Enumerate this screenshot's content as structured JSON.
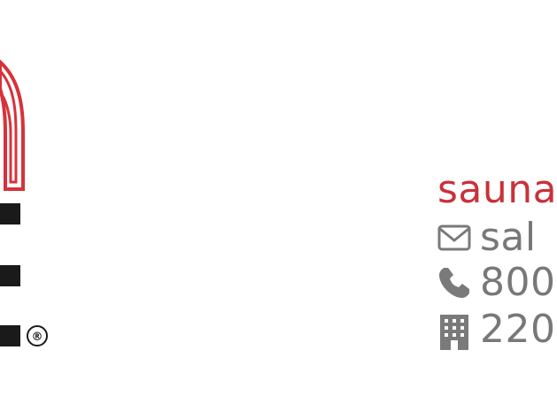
{
  "logo": {
    "name": "sauna-logo",
    "trademark": "®",
    "accent_color": "#d7323a",
    "bar_color": "#1a1a1a"
  },
  "contact": {
    "website": {
      "text": "sauna"
    },
    "email": {
      "icon": "envelope-icon",
      "text": "sal"
    },
    "phone": {
      "icon": "phone-icon",
      "text": "800"
    },
    "address": {
      "icon": "building-icon",
      "text": "220"
    }
  },
  "colors": {
    "red": "#c8323a",
    "gray": "#787878",
    "icon_gray": "#7a7a7a"
  }
}
